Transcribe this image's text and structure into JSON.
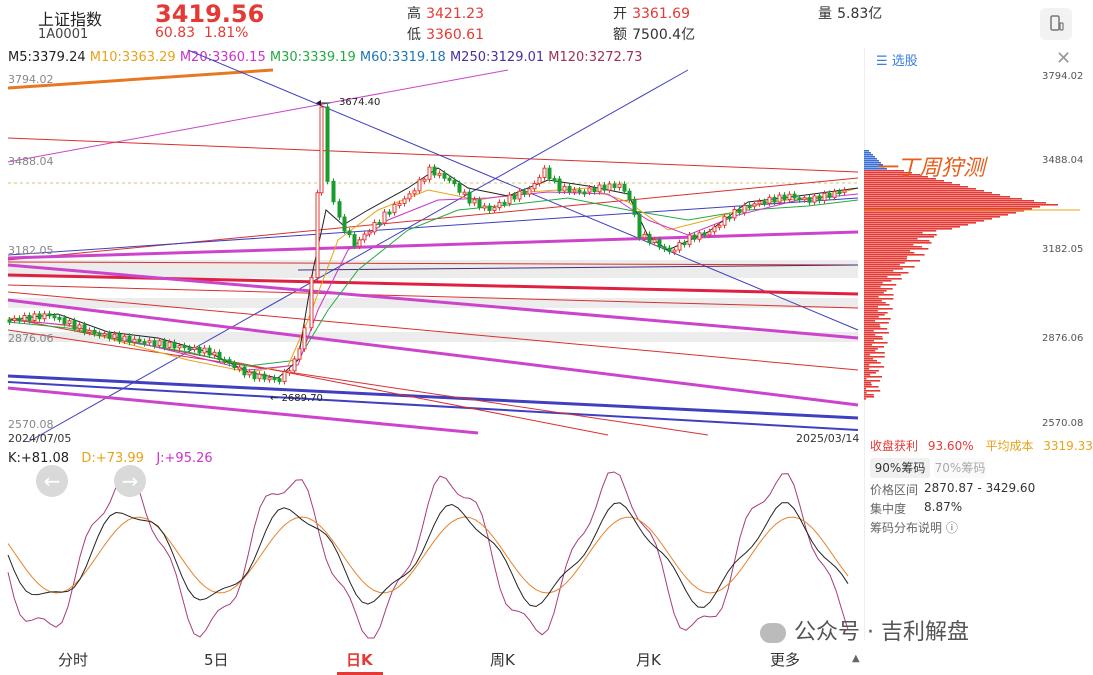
{
  "header": {
    "name": "上证指数",
    "code": "1A0001",
    "price": "3419.56",
    "change": "60.83",
    "change_pct": "1.81%",
    "high_label": "高",
    "high": "3421.23",
    "low_label": "低",
    "low": "3360.61",
    "open_label": "开",
    "open": "3361.69",
    "amount_label": "额",
    "amount": "7500.4亿",
    "volume_label": "量",
    "volume": "5.83亿",
    "device_icon": "phone-icon"
  },
  "ma": {
    "m5": "M5:3379.24",
    "m10": "M10:3363.29",
    "m20": "M20:3360.15",
    "m30": "M30:3339.19",
    "m60": "M60:3319.18",
    "m250": "M250:3129.01",
    "m120": "M120:3272.73"
  },
  "price_axis": [
    "3794.02",
    "3488.04",
    "3182.05",
    "2876.06",
    "2570.08"
  ],
  "annotations": {
    "high_mark": "3674.40",
    "low_mark": "2689.70"
  },
  "dates": {
    "start": "2024/07/05",
    "end": "2025/03/14"
  },
  "kdj": {
    "k": "K:+81.08",
    "d": "D:+73.99",
    "j": "J:+95.26"
  },
  "tabs": [
    "分时",
    "5日",
    "日K",
    "周K",
    "月K",
    "更多"
  ],
  "active_tab": "日K",
  "right_panel": {
    "select_label": "选股",
    "close_icon": "close-icon",
    "axis": [
      "3794.02",
      "3488.04",
      "3182.05",
      "2876.06",
      "2570.08"
    ],
    "handwritten_note": "一丁周狩测",
    "profit_label": "收盘获利",
    "profit_value": "93.60%",
    "avg_cost_label": "平均成本",
    "avg_cost_value": "3319.33",
    "btn90": "90%筹码",
    "btn70": "70%筹码",
    "range_label": "价格区间",
    "range_value": "2870.87 - 3429.60",
    "conc_label": "集中度",
    "conc_value": "8.87%",
    "help_label": "筹码分布说明 ⓘ"
  },
  "watermark": "公众号 · 吉利解盘",
  "colors": {
    "up": "#e53935",
    "down": "#1a9b2e",
    "m5": "#222222",
    "m10": "#e8a317",
    "m20": "#cc33cc",
    "m30": "#22aa44",
    "m60": "#1f77b4",
    "m250": "#4b2ea0",
    "m120": "#a0305a"
  }
}
